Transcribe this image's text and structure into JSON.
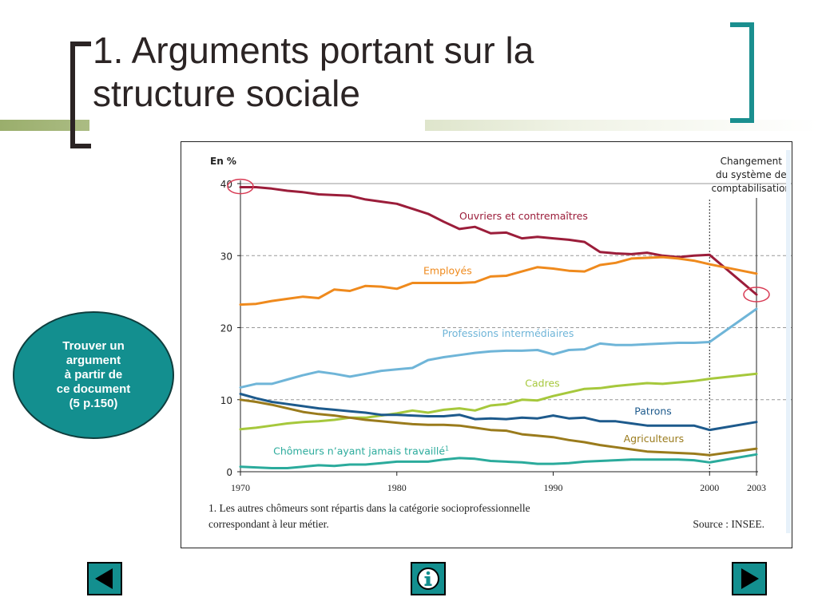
{
  "slide": {
    "title_line1": "1. Arguments portant sur la",
    "title_line2": "structure sociale",
    "callout": "Trouver un\nargument\nà partir de\nce document\n(5 p.150)",
    "colors": {
      "accent": "#138f8f",
      "title": "#2b2424",
      "rule": "#9aae6c"
    }
  },
  "nav": {
    "prev_icon": "triangle-left-icon",
    "info_icon": "info-icon",
    "next_icon": "triangle-right-icon"
  },
  "chart_data": {
    "type": "line",
    "ylabel": "En %",
    "ylim": [
      0,
      40
    ],
    "yticks": [
      0,
      10,
      20,
      30,
      40
    ],
    "xlim": [
      1970,
      2003
    ],
    "xticks": [
      1970,
      1980,
      1990,
      2000,
      2003
    ],
    "grid": "horizontal dashed at 10, 20, 30",
    "annotation": {
      "x": 2000,
      "lines": [
        "Changement",
        "du système de",
        "comptabilisation"
      ]
    },
    "footnote_lines": [
      "1. Les autres chômeurs sont répartis dans la catégorie socioprofessionnelle",
      "correspondant à leur métier."
    ],
    "source": "Source : INSEE.",
    "highlight_circles": [
      {
        "x": 1970,
        "y": 39.6
      },
      {
        "x": 2003,
        "y": 24.6
      }
    ],
    "series": [
      {
        "name": "Ouvriers et contremaîtres",
        "color": "#9b1d3a",
        "x": [
          1970,
          1971,
          1972,
          1973,
          1974,
          1975,
          1976,
          1977,
          1978,
          1979,
          1980,
          1981,
          1982,
          1983,
          1984,
          1985,
          1986,
          1987,
          1988,
          1989,
          1990,
          1991,
          1992,
          1993,
          1994,
          1995,
          1996,
          1997,
          1998,
          1999,
          2000,
          2003
        ],
        "y": [
          39.5,
          39.5,
          39.3,
          39.0,
          38.8,
          38.5,
          38.4,
          38.3,
          37.8,
          37.5,
          37.2,
          36.5,
          35.8,
          34.7,
          33.7,
          34.0,
          33.1,
          33.2,
          32.4,
          32.6,
          32.4,
          32.2,
          31.9,
          30.5,
          30.3,
          30.2,
          30.4,
          30.0,
          29.8,
          30.0,
          30.1,
          24.6
        ],
        "label": "Ouvriers et contremaîtres",
        "label_pos": [
          1984,
          35.0
        ]
      },
      {
        "name": "Employés",
        "color": "#ef8a1d",
        "x": [
          1970,
          1971,
          1972,
          1973,
          1974,
          1975,
          1976,
          1977,
          1978,
          1979,
          1980,
          1981,
          1982,
          1983,
          1984,
          1985,
          1986,
          1987,
          1988,
          1989,
          1990,
          1991,
          1992,
          1993,
          1994,
          1995,
          1996,
          1997,
          1998,
          1999,
          2000,
          2003
        ],
        "y": [
          23.2,
          23.3,
          23.7,
          24.0,
          24.3,
          24.1,
          25.3,
          25.1,
          25.8,
          25.7,
          25.4,
          26.2,
          26.2,
          26.2,
          26.2,
          26.3,
          27.1,
          27.2,
          27.8,
          28.4,
          28.2,
          27.9,
          27.8,
          28.7,
          29.0,
          29.6,
          29.7,
          29.8,
          29.6,
          29.3,
          28.8,
          27.5
        ],
        "label": "Employés",
        "label_pos": [
          1981.7,
          27.4
        ]
      },
      {
        "name": "Professions intermédiaires",
        "color": "#6fb5d8",
        "x": [
          1970,
          1971,
          1972,
          1973,
          1974,
          1975,
          1976,
          1977,
          1978,
          1979,
          1980,
          1981,
          1982,
          1983,
          1984,
          1985,
          1986,
          1987,
          1988,
          1989,
          1990,
          1991,
          1992,
          1993,
          1994,
          1995,
          1996,
          1997,
          1998,
          1999,
          2000,
          2003
        ],
        "y": [
          11.7,
          12.2,
          12.2,
          12.8,
          13.4,
          13.9,
          13.6,
          13.2,
          13.6,
          14.0,
          14.2,
          14.4,
          15.5,
          15.9,
          16.2,
          16.5,
          16.7,
          16.8,
          16.8,
          16.9,
          16.3,
          16.9,
          17.0,
          17.8,
          17.6,
          17.6,
          17.7,
          17.8,
          17.9,
          17.9,
          18.0,
          22.6
        ],
        "label": "Professions intermédiaires",
        "label_pos": [
          1982.9,
          18.7
        ]
      },
      {
        "name": "Cadres",
        "color": "#a6c83c",
        "x": [
          1970,
          1971,
          1972,
          1973,
          1974,
          1975,
          1976,
          1977,
          1978,
          1979,
          1980,
          1981,
          1982,
          1983,
          1984,
          1985,
          1986,
          1987,
          1988,
          1989,
          1990,
          1991,
          1992,
          1993,
          1994,
          1995,
          1996,
          1997,
          1998,
          1999,
          2000,
          2003
        ],
        "y": [
          5.9,
          6.1,
          6.4,
          6.7,
          6.9,
          7.0,
          7.2,
          7.5,
          7.5,
          7.8,
          8.1,
          8.5,
          8.2,
          8.6,
          8.8,
          8.5,
          9.2,
          9.4,
          10.0,
          9.9,
          10.5,
          11.0,
          11.5,
          11.6,
          11.9,
          12.1,
          12.3,
          12.2,
          12.4,
          12.6,
          12.9,
          13.6
        ],
        "label": "Cadres",
        "label_pos": [
          1988.2,
          11.8
        ]
      },
      {
        "name": "Patrons",
        "color": "#1d5a8c",
        "x": [
          1970,
          1971,
          1972,
          1973,
          1974,
          1975,
          1976,
          1977,
          1978,
          1979,
          1980,
          1981,
          1982,
          1983,
          1984,
          1985,
          1986,
          1987,
          1988,
          1989,
          1990,
          1991,
          1992,
          1993,
          1994,
          1995,
          1996,
          1997,
          1998,
          1999,
          2000,
          2003
        ],
        "y": [
          10.8,
          10.2,
          9.7,
          9.4,
          9.1,
          8.8,
          8.6,
          8.4,
          8.2,
          7.9,
          7.9,
          7.8,
          7.7,
          7.7,
          7.9,
          7.3,
          7.4,
          7.3,
          7.5,
          7.4,
          7.8,
          7.4,
          7.5,
          7.0,
          7.0,
          6.7,
          6.4,
          6.4,
          6.4,
          6.4,
          5.8,
          6.9
        ],
        "label": "Patrons",
        "label_pos": [
          1995.2,
          7.9
        ]
      },
      {
        "name": "Agriculteurs",
        "color": "#9a7b1c",
        "x": [
          1970,
          1971,
          1972,
          1973,
          1974,
          1975,
          1976,
          1977,
          1978,
          1979,
          1980,
          1981,
          1982,
          1983,
          1984,
          1985,
          1986,
          1987,
          1988,
          1989,
          1990,
          1991,
          1992,
          1993,
          1994,
          1995,
          1996,
          1997,
          1998,
          1999,
          2000,
          2003
        ],
        "y": [
          10.0,
          9.7,
          9.3,
          8.8,
          8.3,
          8.0,
          7.8,
          7.5,
          7.2,
          7.0,
          6.8,
          6.6,
          6.5,
          6.5,
          6.4,
          6.1,
          5.8,
          5.7,
          5.2,
          5.0,
          4.8,
          4.4,
          4.1,
          3.7,
          3.4,
          3.1,
          2.8,
          2.7,
          2.6,
          2.5,
          2.3,
          3.2
        ],
        "label": "Agriculteurs",
        "label_pos": [
          1994.5,
          4.1
        ]
      },
      {
        "name": "Chômeurs n'ayant jamais travaillé",
        "color": "#2bab9c",
        "x": [
          1970,
          1971,
          1972,
          1973,
          1974,
          1975,
          1976,
          1977,
          1978,
          1979,
          1980,
          1981,
          1982,
          1983,
          1984,
          1985,
          1986,
          1987,
          1988,
          1989,
          1990,
          1991,
          1992,
          1993,
          1994,
          1995,
          1996,
          1997,
          1998,
          1999,
          2000,
          2003
        ],
        "y": [
          0.7,
          0.6,
          0.5,
          0.5,
          0.7,
          0.9,
          0.8,
          1.0,
          1.0,
          1.2,
          1.4,
          1.4,
          1.4,
          1.7,
          1.9,
          1.8,
          1.5,
          1.4,
          1.3,
          1.1,
          1.1,
          1.2,
          1.4,
          1.5,
          1.6,
          1.7,
          1.7,
          1.7,
          1.7,
          1.6,
          1.3,
          2.4
        ],
        "label": "Chômeurs n’ayant jamais travaillé",
        "label_sup": "1",
        "label_pos": [
          1972.1,
          2.4
        ]
      }
    ]
  }
}
